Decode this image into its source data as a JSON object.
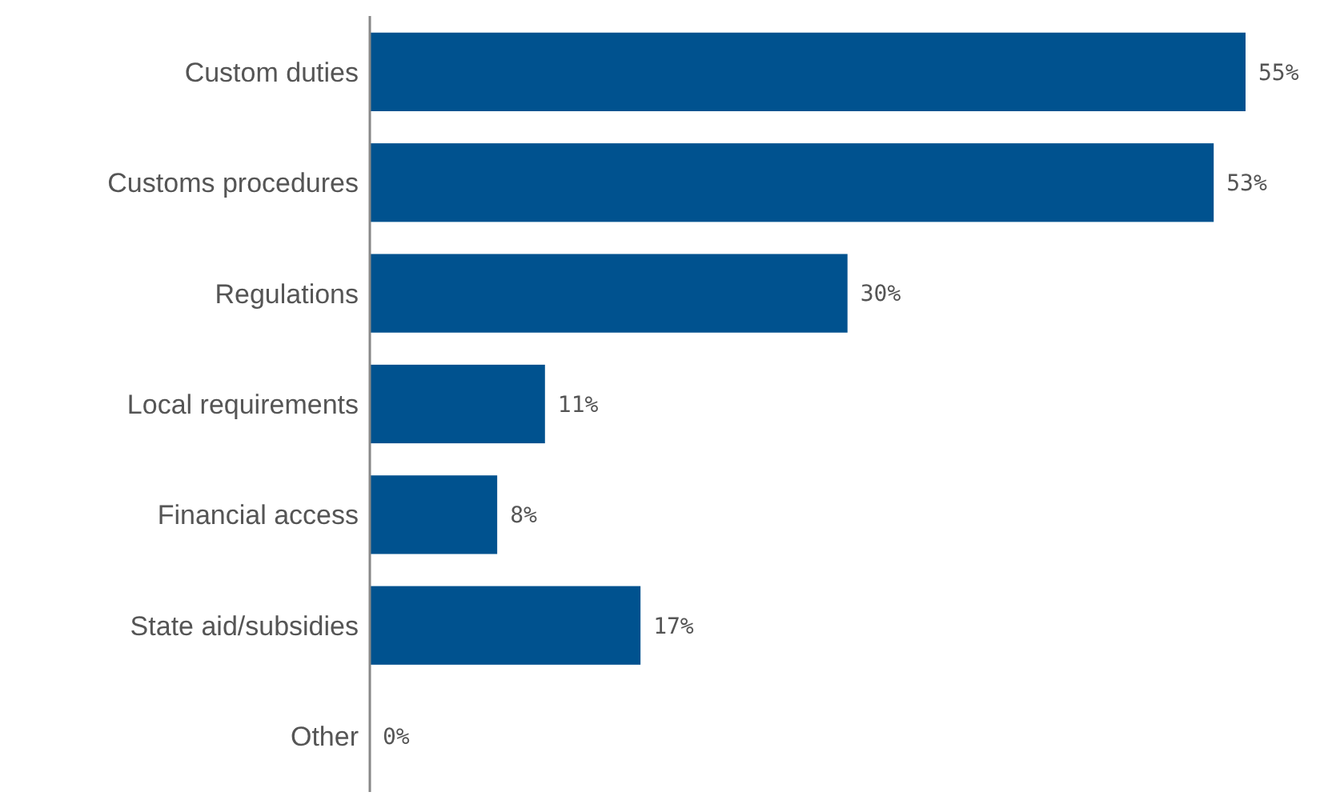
{
  "chart_data": {
    "type": "bar",
    "orientation": "horizontal",
    "categories": [
      "Custom duties",
      "Customs procedures",
      "Regulations",
      "Local requirements",
      "Financial access",
      "State aid/subsidies",
      "Other"
    ],
    "values": [
      55,
      53,
      30,
      11,
      8,
      17,
      0
    ],
    "value_labels": [
      "55%",
      "53%",
      "30%",
      "11%",
      "8%",
      "17%",
      "0%"
    ],
    "color": "#00528f",
    "xlim": [
      0,
      55
    ],
    "tick_labels": "y"
  }
}
